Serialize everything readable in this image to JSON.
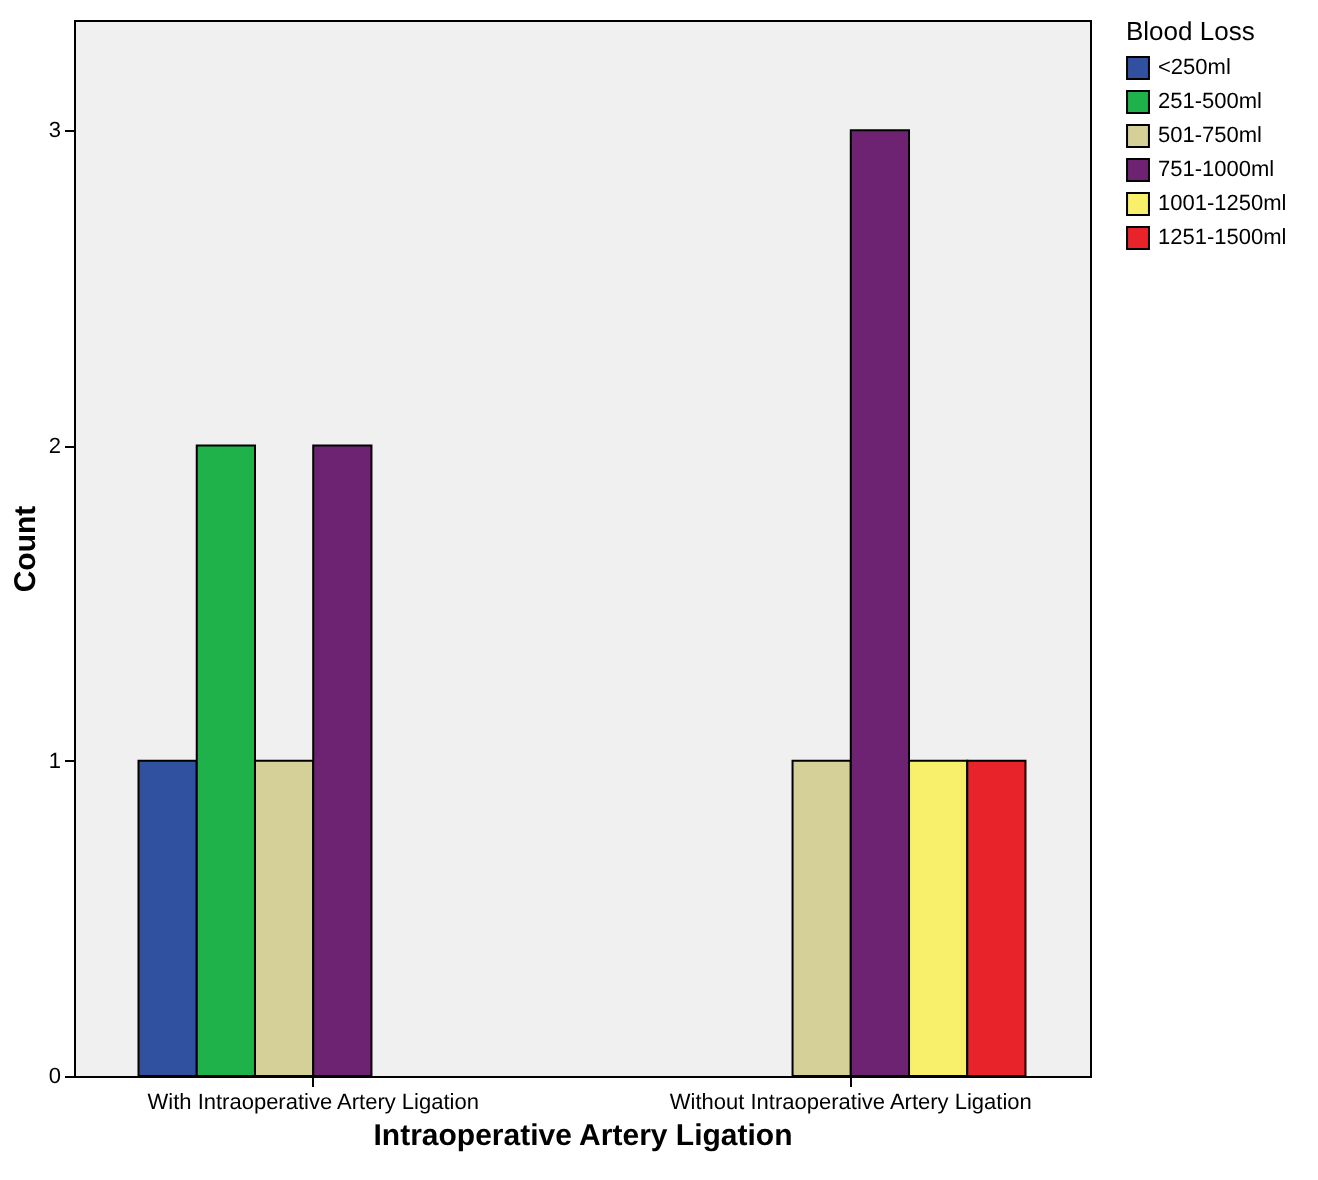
{
  "chart_data": {
    "type": "bar",
    "xlabel": "Intraoperative Artery Ligation",
    "ylabel": "Count",
    "legend_title": "Blood Loss",
    "legend": "top right",
    "grid": false,
    "categories": [
      "With Intraoperative Artery Ligation",
      "Without Intraoperative Artery Ligation"
    ],
    "ylim": [
      0,
      3.35
    ],
    "yticks": [
      0,
      1,
      2,
      3
    ],
    "series": [
      {
        "name": "<250ml",
        "color": "#3050a0",
        "values": [
          1,
          null
        ]
      },
      {
        "name": "251-500ml",
        "color": "#1fb24a",
        "values": [
          2,
          null
        ]
      },
      {
        "name": "501-750ml",
        "color": "#d5cf98",
        "values": [
          1,
          1
        ]
      },
      {
        "name": "751-1000ml",
        "color": "#6e2372",
        "values": [
          2,
          3
        ]
      },
      {
        "name": "1001-1250ml",
        "color": "#f8ef6a",
        "values": [
          null,
          1
        ]
      },
      {
        "name": "1251-1500ml",
        "color": "#e8232a",
        "values": [
          null,
          1
        ]
      }
    ]
  }
}
